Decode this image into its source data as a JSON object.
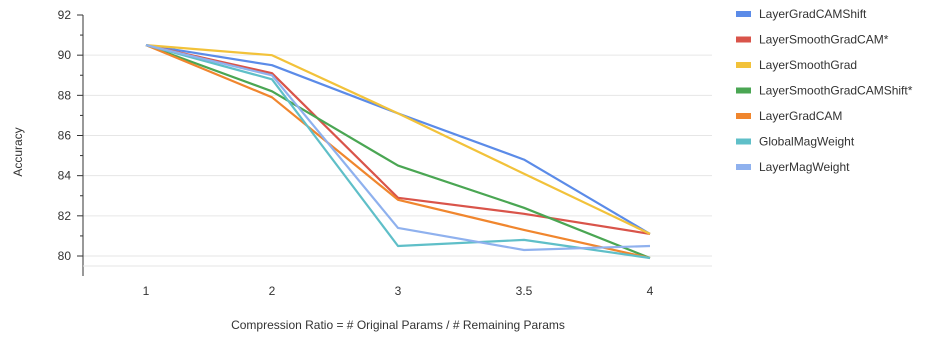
{
  "chart_data": {
    "type": "line",
    "categories": [
      "1",
      "2",
      "3",
      "3.5",
      "4"
    ],
    "xlabel": "Compression Ratio = # Original Params / # Remaining Params",
    "ylabel": "Accuracy",
    "ylim": [
      79,
      92
    ],
    "yticks": [
      80,
      82,
      84,
      86,
      88,
      90,
      92
    ],
    "grid": true,
    "legend_position": "right",
    "series": [
      {
        "name": "LayerGradCAMShift",
        "color": "#5b8be8",
        "values": [
          90.5,
          89.5,
          87.1,
          84.8,
          81.1
        ]
      },
      {
        "name": "LayerSmoothGradCAM*",
        "color": "#d9544a",
        "values": [
          90.5,
          89.1,
          82.9,
          82.1,
          81.1
        ]
      },
      {
        "name": "LayerSmoothGrad",
        "color": "#f2c23a",
        "values": [
          90.5,
          90.0,
          87.1,
          84.1,
          81.1
        ]
      },
      {
        "name": "LayerSmoothGradCAMShift*",
        "color": "#4aa653",
        "values": [
          90.5,
          88.2,
          84.5,
          82.4,
          79.9
        ]
      },
      {
        "name": "LayerGradCAM",
        "color": "#f0862e",
        "values": [
          90.5,
          87.9,
          82.8,
          81.3,
          79.9
        ]
      },
      {
        "name": "GlobalMagWeight",
        "color": "#5fbfc8",
        "values": [
          90.5,
          88.8,
          80.5,
          80.8,
          79.9
        ]
      },
      {
        "name": "LayerMagWeight",
        "color": "#8fb1ee",
        "values": [
          90.5,
          89.0,
          81.4,
          80.3,
          80.5
        ]
      }
    ]
  }
}
